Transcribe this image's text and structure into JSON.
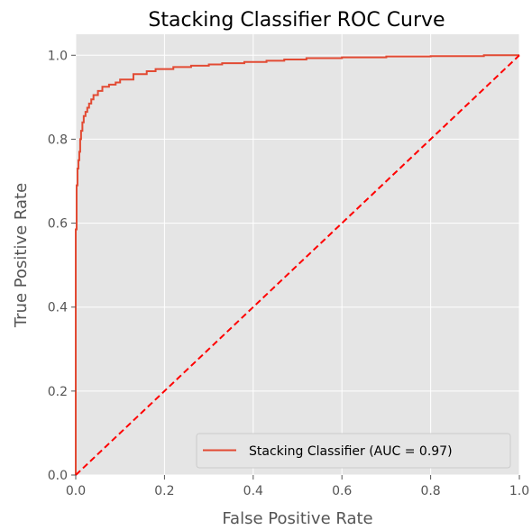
{
  "chart_data": {
    "type": "line",
    "title": "Stacking Classifier ROC Curve",
    "xlabel": "False Positive Rate",
    "ylabel": "True Positive Rate",
    "xlim": [
      0.0,
      1.0
    ],
    "ylim": [
      0.0,
      1.05
    ],
    "xticks": [
      0.0,
      0.2,
      0.4,
      0.6,
      0.8,
      1.0
    ],
    "yticks": [
      0.0,
      0.2,
      0.4,
      0.6,
      0.8,
      1.0
    ],
    "xtick_labels": [
      "0.0",
      "0.2",
      "0.4",
      "0.6",
      "0.8",
      "1.0"
    ],
    "ytick_labels": [
      "0.0",
      "0.2",
      "0.4",
      "0.6",
      "0.8",
      "1.0"
    ],
    "grid": true,
    "legend_position": "lower-right",
    "series": [
      {
        "name": "Stacking Classifier (AUC = 0.97)",
        "color": "#e24a33",
        "style": "solid",
        "x": [
          0.0,
          0.0,
          0.002,
          0.002,
          0.004,
          0.004,
          0.006,
          0.006,
          0.008,
          0.008,
          0.01,
          0.01,
          0.012,
          0.012,
          0.015,
          0.015,
          0.018,
          0.018,
          0.022,
          0.022,
          0.026,
          0.026,
          0.03,
          0.03,
          0.035,
          0.035,
          0.04,
          0.04,
          0.05,
          0.05,
          0.06,
          0.06,
          0.075,
          0.075,
          0.09,
          0.09,
          0.1,
          0.1,
          0.13,
          0.13,
          0.16,
          0.16,
          0.18,
          0.18,
          0.22,
          0.22,
          0.26,
          0.26,
          0.3,
          0.3,
          0.33,
          0.33,
          0.38,
          0.38,
          0.43,
          0.43,
          0.47,
          0.47,
          0.52,
          0.52,
          0.6,
          0.6,
          0.7,
          0.7,
          0.8,
          0.8,
          0.92,
          0.92,
          1.0
        ],
        "y": [
          0.0,
          0.585,
          0.585,
          0.69,
          0.69,
          0.73,
          0.73,
          0.75,
          0.75,
          0.77,
          0.77,
          0.8,
          0.8,
          0.82,
          0.82,
          0.84,
          0.84,
          0.855,
          0.855,
          0.865,
          0.865,
          0.875,
          0.875,
          0.885,
          0.885,
          0.895,
          0.895,
          0.905,
          0.905,
          0.915,
          0.915,
          0.925,
          0.925,
          0.93,
          0.93,
          0.935,
          0.935,
          0.942,
          0.942,
          0.955,
          0.955,
          0.962,
          0.962,
          0.967,
          0.967,
          0.972,
          0.972,
          0.975,
          0.975,
          0.978,
          0.978,
          0.981,
          0.981,
          0.984,
          0.984,
          0.987,
          0.987,
          0.99,
          0.99,
          0.993,
          0.993,
          0.995,
          0.995,
          0.997,
          0.997,
          0.998,
          0.998,
          1.0,
          1.0
        ]
      },
      {
        "name": "",
        "color": "#ff0000",
        "style": "dashed",
        "x": [
          0.0,
          1.0
        ],
        "y": [
          0.0,
          1.0
        ]
      }
    ]
  },
  "colors": {
    "plot_background": "#e5e5e5",
    "grid": "#ffffff",
    "roc_line": "#e24a33",
    "diagonal_line": "#ff0000",
    "legend_background": "#e5e5e5",
    "legend_border": "#cccccc"
  }
}
